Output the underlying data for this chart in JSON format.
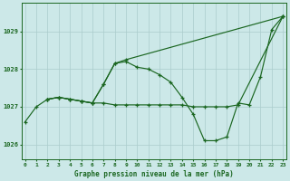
{
  "background_color": "#cce8e8",
  "grid_color": "#aacccc",
  "line_color": "#1a6620",
  "title": "Graphe pression niveau de la mer (hPa)",
  "hours": [
    0,
    1,
    2,
    3,
    4,
    5,
    6,
    7,
    8,
    9,
    10,
    11,
    12,
    13,
    14,
    15,
    16,
    17,
    18,
    19,
    20,
    21,
    22,
    23
  ],
  "ylim": [
    1025.6,
    1029.75
  ],
  "yticks": [
    1026,
    1027,
    1028,
    1029
  ],
  "line1_x": [
    0,
    1,
    2,
    3,
    4,
    5,
    6,
    7,
    8,
    9,
    10,
    11,
    12,
    13,
    14,
    15,
    16,
    17,
    18,
    19,
    20,
    21,
    22,
    23
  ],
  "line1_y": [
    1026.6,
    1027.0,
    1027.2,
    1027.25,
    1027.2,
    1027.15,
    1027.1,
    1027.6,
    1028.15,
    1028.2,
    1028.05,
    1028.0,
    1027.85,
    1027.65,
    1027.25,
    1026.8,
    1026.1,
    1026.1,
    1026.2,
    1027.1,
    1027.05,
    1027.8,
    1029.05,
    1029.4
  ],
  "line2_x": [
    2,
    3,
    4,
    5,
    6,
    7,
    8,
    9,
    23
  ],
  "line2_y": [
    1027.2,
    1027.25,
    1027.2,
    1027.15,
    1027.1,
    1027.6,
    1028.15,
    1028.25,
    1029.4
  ],
  "line3_x": [
    2,
    3,
    4,
    5,
    6,
    7,
    8,
    9,
    10,
    11,
    12,
    13,
    14,
    15,
    16,
    17,
    18,
    19,
    23
  ],
  "line3_y": [
    1027.2,
    1027.25,
    1027.2,
    1027.15,
    1027.1,
    1027.1,
    1027.05,
    1027.05,
    1027.05,
    1027.05,
    1027.05,
    1027.05,
    1027.05,
    1027.0,
    1027.0,
    1027.0,
    1027.0,
    1027.05,
    1029.4
  ]
}
